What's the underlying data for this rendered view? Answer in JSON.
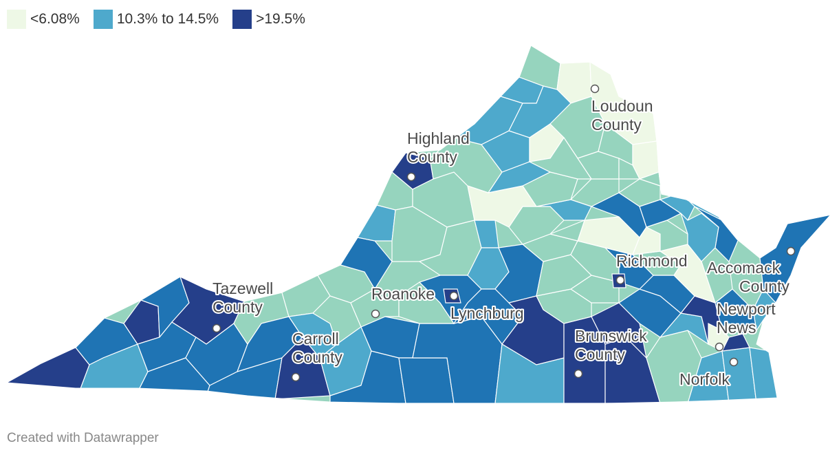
{
  "legend": [
    {
      "label": "<6.08%",
      "color": "#eef8e6"
    },
    {
      "label": "10.3% to 14.5%",
      "color": "#4ea9cc"
    },
    {
      "label": ">19.5%",
      "color": "#253f8a"
    }
  ],
  "colors": {
    "c1": "#eef8e6",
    "c2": "#96d4be",
    "c3": "#4ea9cc",
    "c4": "#1f74b4",
    "c5": "#253f8a",
    "border": "#ffffff",
    "marker": "#ffffff"
  },
  "places": [
    {
      "name": "loudoun",
      "lines": [
        "Loudoun",
        "County"
      ]
    },
    {
      "name": "highland",
      "lines": [
        "Highland",
        "County"
      ]
    },
    {
      "name": "tazewell",
      "lines": [
        "Tazewell",
        "County"
      ]
    },
    {
      "name": "roanoke",
      "lines": [
        "Roanoke"
      ]
    },
    {
      "name": "lynchburg",
      "lines": [
        "Lynchburg"
      ]
    },
    {
      "name": "carroll",
      "lines": [
        "Carroll",
        "County"
      ]
    },
    {
      "name": "richmond",
      "lines": [
        "Richmond"
      ]
    },
    {
      "name": "accomack",
      "lines": [
        "Accomack",
        "County"
      ]
    },
    {
      "name": "newport-news",
      "lines": [
        "Newport",
        "News"
      ]
    },
    {
      "name": "brunswick",
      "lines": [
        "Brunswick",
        "County"
      ]
    },
    {
      "name": "norfolk",
      "lines": [
        "Norfolk"
      ]
    }
  ],
  "footer": "Created with Datawrapper"
}
